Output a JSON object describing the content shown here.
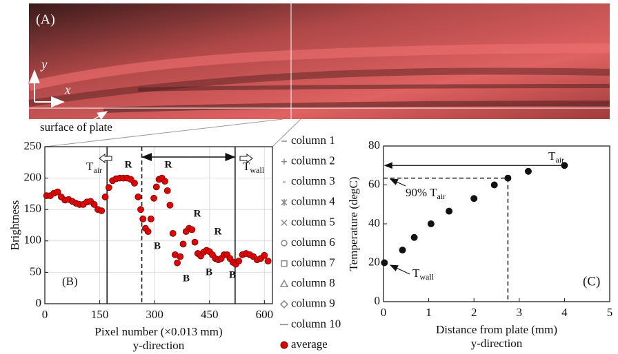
{
  "image_panel": {
    "label": "(A)",
    "axis_y": "y",
    "axis_x": "x",
    "caption": "surface of plate"
  },
  "chart_data": [
    {
      "type": "scatter",
      "panel_label": "(B)",
      "x_label": "Pixel number (×0.013 mm)",
      "x_label2": "y-direction",
      "y_label": "Brightness",
      "xlim": [
        0,
        622
      ],
      "ylim": [
        0,
        250
      ],
      "xticks": [
        0,
        150,
        300,
        450,
        600
      ],
      "yticks": [
        0,
        50,
        100,
        150,
        200,
        250
      ],
      "grid": true,
      "series": [
        {
          "name": "column 1",
          "marker": "dash",
          "color": "#888888"
        },
        {
          "name": "column 2",
          "marker": "plus",
          "color": "#888888"
        },
        {
          "name": "column 3",
          "marker": "short-dash",
          "color": "#888888"
        },
        {
          "name": "column 4",
          "marker": "asterisk",
          "color": "#888888"
        },
        {
          "name": "column 5",
          "marker": "cross",
          "color": "#888888"
        },
        {
          "name": "column 6",
          "marker": "circle",
          "color": "#888888"
        },
        {
          "name": "column 7",
          "marker": "square",
          "color": "#888888"
        },
        {
          "name": "column 8",
          "marker": "triangle",
          "color": "#888888"
        },
        {
          "name": "column 9",
          "marker": "diamond",
          "color": "#888888"
        },
        {
          "name": "column 10",
          "marker": "long-dash",
          "color": "#888888"
        },
        {
          "name": "average",
          "marker": "dot",
          "color": "#e00000",
          "x": [
            5,
            15,
            25,
            35,
            45,
            55,
            65,
            75,
            85,
            95,
            105,
            115,
            125,
            135,
            145,
            155,
            165,
            175,
            185,
            195,
            205,
            215,
            225,
            235,
            245,
            255,
            262,
            268,
            275,
            282,
            290,
            298,
            305,
            312,
            320,
            328,
            335,
            342,
            350,
            356,
            362,
            370,
            378,
            386,
            394,
            402,
            410,
            418,
            426,
            434,
            442,
            450,
            458,
            466,
            474,
            482,
            490,
            498,
            506,
            514,
            522,
            530,
            540,
            550,
            560,
            570,
            580,
            590,
            600,
            610
          ],
          "values": [
            172,
            172,
            176,
            178,
            170,
            165,
            166,
            163,
            160,
            158,
            158,
            162,
            163,
            158,
            150,
            148,
            170,
            185,
            196,
            199,
            200,
            200,
            200,
            198,
            192,
            170,
            150,
            135,
            120,
            115,
            135,
            168,
            186,
            198,
            200,
            195,
            180,
            157,
            112,
            78,
            65,
            75,
            95,
            115,
            120,
            118,
            98,
            80,
            76,
            82,
            85,
            83,
            78,
            72,
            70,
            72,
            78,
            78,
            72,
            66,
            63,
            68,
            78,
            80,
            78,
            75,
            70,
            72,
            77,
            68
          ]
        }
      ],
      "vlines": [
        {
          "x": 170,
          "dashed": false
        },
        {
          "x": 265,
          "dashed": true
        },
        {
          "x": 520,
          "dashed": false
        }
      ],
      "boundary_labels": [
        {
          "text": "T",
          "sub": "air"
        },
        {
          "text": "T",
          "sub": "wall"
        }
      ],
      "region_labels": [
        "R",
        "R",
        "R",
        "R",
        "B",
        "B",
        "B",
        "B"
      ]
    },
    {
      "type": "scatter",
      "panel_label": "(C)",
      "x_label": "Distance from plate (mm)",
      "x_label2": "y-direction",
      "y_label": "Temperature (degC)",
      "xlim": [
        0,
        5
      ],
      "ylim": [
        0,
        80
      ],
      "xticks": [
        0,
        1,
        2,
        3,
        4,
        5
      ],
      "yticks": [
        0,
        20,
        40,
        60,
        80
      ],
      "grid": false,
      "series": [
        {
          "color": "#111111",
          "x": [
            0.02,
            0.42,
            0.68,
            1.05,
            1.45,
            2.0,
            2.45,
            2.75,
            3.2,
            4.0
          ],
          "values": [
            20,
            26.5,
            33,
            40,
            46.5,
            53,
            60,
            63.5,
            67,
            70
          ]
        }
      ],
      "ref_air": 70,
      "ref_90": {
        "x": 2.75,
        "y": 63.5
      },
      "boundary_labels": [
        {
          "text": "T",
          "sub": "air"
        },
        {
          "text": "90% T",
          "sub": "air"
        },
        {
          "text": "T",
          "sub": "wall"
        }
      ]
    }
  ]
}
